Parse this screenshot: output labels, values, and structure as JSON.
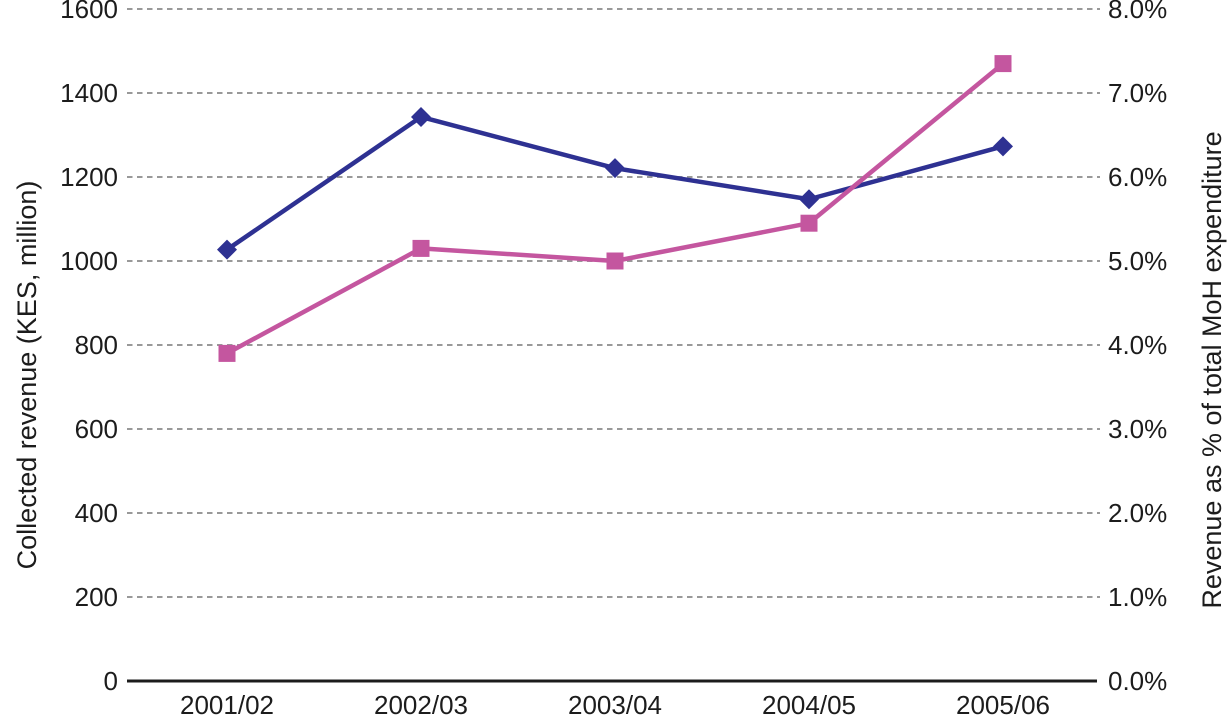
{
  "chart_data": {
    "type": "line",
    "title": "",
    "legend": "none",
    "grid": {
      "style": "dashed-horizontal",
      "color": "#999999"
    },
    "background": "#ffffff",
    "text_color": "#1c1c1c",
    "axis_line_color": "#1c1c1c",
    "categories": [
      "2001/02",
      "2002/03",
      "2003/04",
      "2004/05",
      "2005/06"
    ],
    "series": [
      {
        "key": "collected-revenue",
        "name": "Collected revenue (KES, million)",
        "axis": "left",
        "marker": "diamond",
        "color": "#2e3192",
        "values": [
          1027,
          1343,
          1221,
          1147,
          1273
        ]
      },
      {
        "key": "revenue-pct",
        "name": "Revenue as % of total MoH expenditure",
        "axis": "right",
        "marker": "square",
        "color": "#c4569f",
        "values": [
          3.9,
          5.15,
          5.0,
          5.45,
          7.35
        ]
      }
    ],
    "left_axis": {
      "label": "Collected revenue (KES, million)",
      "min": 0,
      "max": 1600,
      "step": 200,
      "tick_labels": [
        "0",
        "200",
        "400",
        "600",
        "800",
        "1000",
        "1200",
        "1400",
        "1600"
      ]
    },
    "right_axis": {
      "label": "Revenue as % of total MoH expenditure",
      "min": 0,
      "max": 8,
      "step": 1,
      "tick_labels": [
        "0.0%",
        "1.0%",
        "2.0%",
        "3.0%",
        "4.0%",
        "5.0%",
        "6.0%",
        "7.0%",
        "8.0%"
      ]
    }
  }
}
